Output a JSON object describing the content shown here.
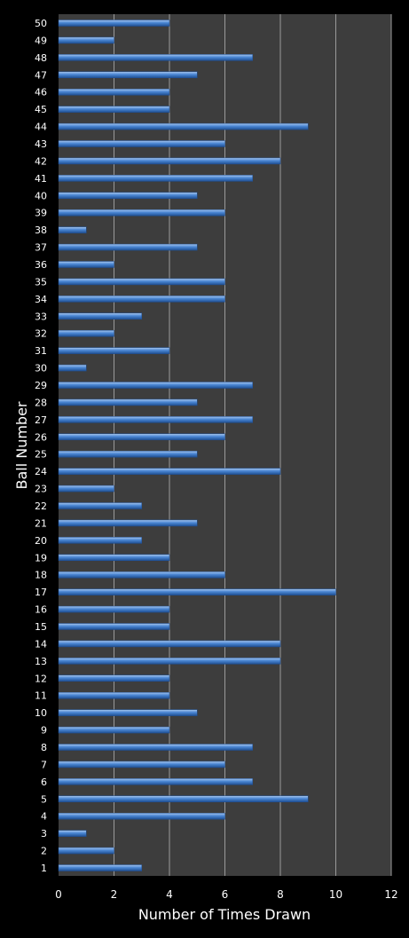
{
  "chart_data": {
    "type": "bar",
    "orientation": "horizontal",
    "xlabel": "Number of Times Drawn",
    "ylabel": "Ball Number",
    "xlim": [
      0,
      12
    ],
    "x_ticks": [
      "0",
      "2",
      "4",
      "6",
      "8",
      "10",
      "12"
    ],
    "grid": true,
    "legend": "none",
    "categories": [
      "1",
      "2",
      "3",
      "4",
      "5",
      "6",
      "7",
      "8",
      "9",
      "10",
      "11",
      "12",
      "13",
      "14",
      "15",
      "16",
      "17",
      "18",
      "19",
      "20",
      "21",
      "22",
      "23",
      "24",
      "25",
      "26",
      "27",
      "28",
      "29",
      "30",
      "31",
      "32",
      "33",
      "34",
      "35",
      "36",
      "37",
      "38",
      "39",
      "40",
      "41",
      "42",
      "43",
      "44",
      "45",
      "46",
      "47",
      "48",
      "49",
      "50"
    ],
    "values": [
      3,
      2,
      1,
      6,
      9,
      7,
      6,
      7,
      4,
      5,
      4,
      4,
      8,
      8,
      4,
      4,
      10,
      6,
      4,
      3,
      5,
      3,
      2,
      8,
      5,
      6,
      7,
      5,
      7,
      1,
      4,
      2,
      3,
      6,
      6,
      2,
      5,
      1,
      6,
      5,
      7,
      8,
      6,
      9,
      4,
      4,
      5,
      7,
      2,
      4
    ]
  },
  "colors": {
    "background": "#000000",
    "plot_area": "#3d3d3d",
    "gridline": "#9a9a9a",
    "bar_light": "#a9c8ef",
    "bar_mid": "#4a86d3",
    "bar_dark": "#1f4f93",
    "text": "#ffffff"
  }
}
